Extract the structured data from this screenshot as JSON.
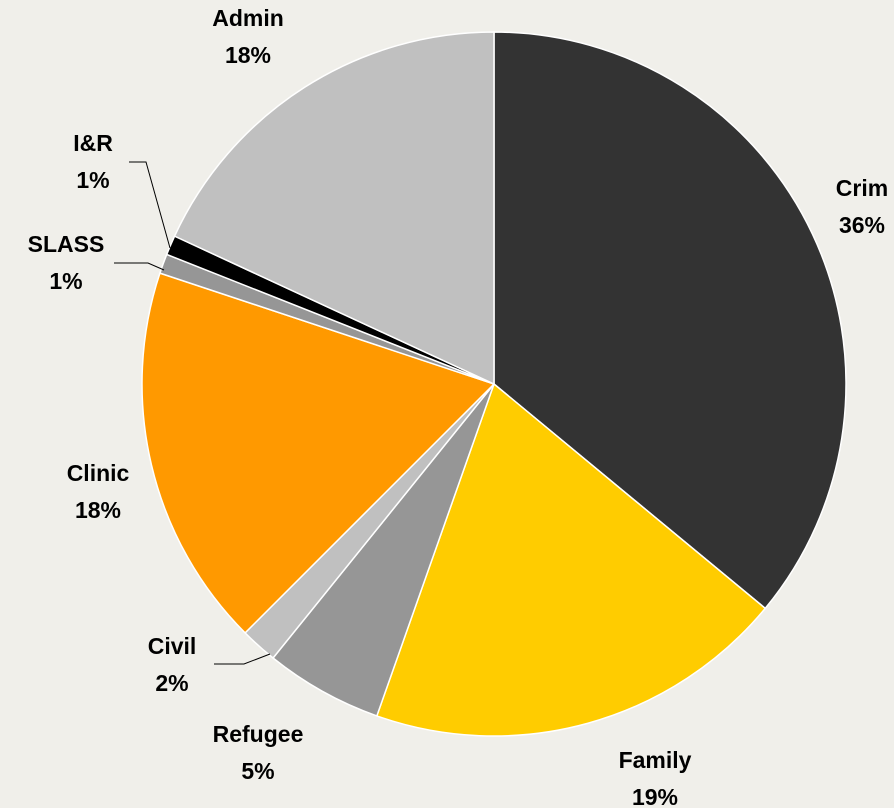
{
  "chart_data": {
    "type": "pie",
    "title": "",
    "start_angle_deg": 0,
    "direction": "clockwise",
    "slice_border_color": "#ffffff",
    "slices": [
      {
        "label": "Crim",
        "pct_label": "36%",
        "value": 36.0,
        "color": "#333333"
      },
      {
        "label": "Family",
        "pct_label": "19%",
        "value": 19.4,
        "color": "#ffcc00"
      },
      {
        "label": "Refugee",
        "pct_label": "5%",
        "value": 5.4,
        "color": "#969696"
      },
      {
        "label": "Civil",
        "pct_label": "2%",
        "value": 1.7,
        "color": "#c0c0c0"
      },
      {
        "label": "Clinic",
        "pct_label": "18%",
        "value": 17.6,
        "color": "#ff9900"
      },
      {
        "label": "SLASS",
        "pct_label": "1%",
        "value": 0.9,
        "color": "#969696"
      },
      {
        "label": "I&R",
        "pct_label": "1%",
        "value": 0.9,
        "color": "#000000"
      },
      {
        "label": "Admin",
        "pct_label": "18%",
        "value": 18.1,
        "color": "#c0c0c0"
      }
    ]
  }
}
